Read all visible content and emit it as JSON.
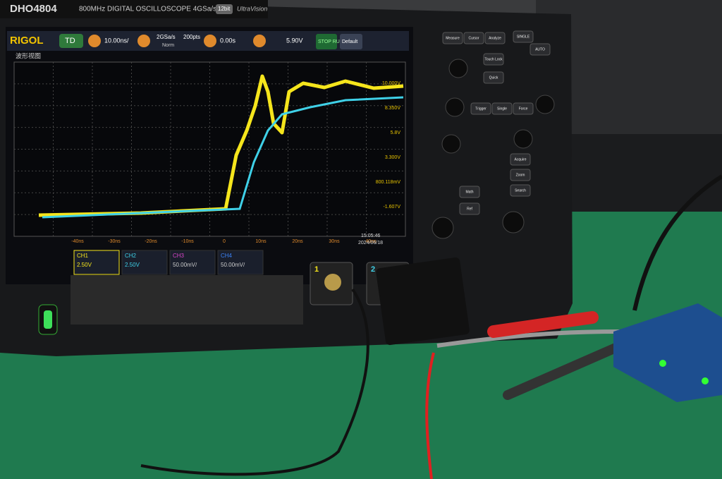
{
  "header": {
    "model": "DHO4804",
    "spec": "800MHz DIGITAL OSCILLOSCOPE 4GSa/s",
    "bits": "12bit",
    "tech": "UltraVision"
  },
  "toolbar": {
    "brand": "RIGOL",
    "mode": "TD",
    "h_scale": "10.00ns/",
    "sample_rate": "2GSa/s",
    "points": "200pts",
    "acq": "Norm",
    "delay": "0.00s",
    "trigger_level": "5.90V",
    "run": "STOP RUN",
    "default": "Default"
  },
  "window_title": "波形视图",
  "v_labels": [
    "10.000V",
    "8.350V",
    "5.8V",
    "3.300V",
    "800.118mV",
    "-1.607V"
  ],
  "t_labels": [
    "-40ns",
    "-30ns",
    "-20ns",
    "-10ns",
    "0",
    "10ns",
    "20ns",
    "30ns",
    "40ns"
  ],
  "channels": [
    {
      "name": "CH1",
      "scale": "2.50V"
    },
    {
      "name": "CH2",
      "scale": "2.50V"
    },
    {
      "name": "CH3",
      "scale": "50.00mV/"
    },
    {
      "name": "CH4",
      "scale": "50.00mV/"
    }
  ],
  "clock": {
    "time": "15:05:46",
    "date": "2024/06/18"
  },
  "buttons": [
    "Measure",
    "Cursor",
    "Analyze",
    "SINGLE",
    "AUTO",
    "Touch Lock",
    "Quick",
    "Trigger",
    "Single",
    "Force",
    "Acquire",
    "Zoom",
    "Search",
    "Math",
    "Ref"
  ],
  "ports": [
    "1",
    "2"
  ]
}
